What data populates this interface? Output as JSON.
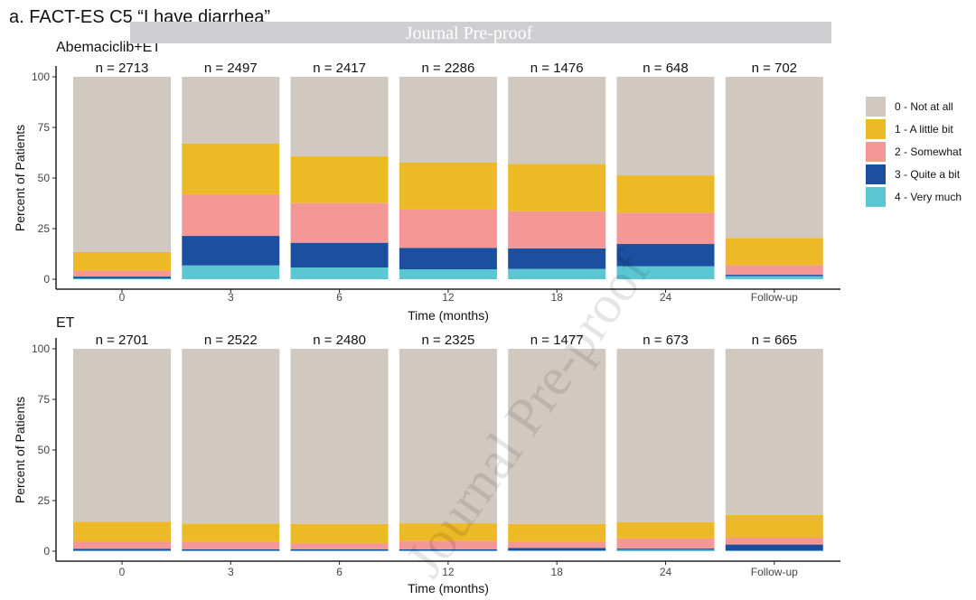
{
  "title": "a. FACT-ES C5 “I have diarrhea”",
  "watermark_banner": "Journal Pre-proof",
  "watermark_diagonal": "Journal Pre-proof",
  "colors": {
    "0 - Not at all": "#d1c9c0",
    "1 - A little bit": "#ecb927",
    "2 - Somewhat": "#f49797",
    "3 - Quite a bit": "#1d4fa0",
    "4 - Very much": "#5bc7d2"
  },
  "chart_data": [
    {
      "type": "bar",
      "stacked": true,
      "panel_label": "Abemaciclib+ET",
      "categories": [
        "0",
        "3",
        "6",
        "12",
        "18",
        "24",
        "Follow-up"
      ],
      "n_labels": [
        "n = 2713",
        "n = 2497",
        "n = 2417",
        "n = 2286",
        "n = 1476",
        "n = 648",
        "n = 702"
      ],
      "xlabel": "Time (months)",
      "ylabel": "Percent of Patients",
      "ylim": [
        0,
        100
      ],
      "yticks": [
        0,
        25,
        50,
        75,
        100
      ],
      "series": [
        {
          "name": "4 - Very much",
          "values": [
            0.3,
            6.8,
            5.8,
            4.9,
            5.1,
            6.4,
            1.5
          ]
        },
        {
          "name": "3 - Quite a bit",
          "values": [
            1.0,
            14.6,
            12.2,
            10.6,
            10.1,
            11.0,
            0.7
          ]
        },
        {
          "name": "2 - Somewhat",
          "values": [
            2.9,
            20.6,
            19.6,
            18.9,
            18.4,
            15.5,
            4.8
          ]
        },
        {
          "name": "1 - A little bit",
          "values": [
            9.2,
            25.1,
            23.1,
            23.2,
            23.4,
            18.4,
            13.4
          ]
        },
        {
          "name": "0 - Not at all",
          "values": [
            86.6,
            32.9,
            39.3,
            42.4,
            43.0,
            48.7,
            79.6
          ]
        }
      ]
    },
    {
      "type": "bar",
      "stacked": true,
      "panel_label": "ET",
      "categories": [
        "0",
        "3",
        "6",
        "12",
        "18",
        "24",
        "Follow-up"
      ],
      "n_labels": [
        "n = 2701",
        "n = 2522",
        "n = 2480",
        "n = 2325",
        "n = 1477",
        "n = 673",
        "n = 665"
      ],
      "xlabel": "Time (months)",
      "ylabel": "Percent of Patients",
      "ylim": [
        0,
        100
      ],
      "yticks": [
        0,
        25,
        50,
        75,
        100
      ],
      "series": [
        {
          "name": "4 - Very much",
          "values": [
            0.3,
            0.3,
            0.3,
            0.3,
            0.4,
            0.7,
            0.3
          ]
        },
        {
          "name": "3 - Quite a bit",
          "values": [
            0.9,
            0.7,
            0.7,
            0.6,
            1.2,
            0.6,
            3.0
          ]
        },
        {
          "name": "2 - Somewhat",
          "values": [
            3.7,
            3.5,
            3.0,
            4.3,
            2.9,
            5.0,
            3.4
          ]
        },
        {
          "name": "1 - A little bit",
          "values": [
            9.7,
            9.2,
            9.5,
            8.6,
            9.0,
            8.1,
            11.2
          ]
        },
        {
          "name": "0 - Not at all",
          "values": [
            85.4,
            86.3,
            86.5,
            86.2,
            86.5,
            85.6,
            82.1
          ]
        }
      ]
    }
  ],
  "legend": {
    "position": "right",
    "entries": [
      "0 - Not at all",
      "1 - A little bit",
      "2 - Somewhat",
      "3 - Quite a bit",
      "4 - Very much"
    ]
  }
}
